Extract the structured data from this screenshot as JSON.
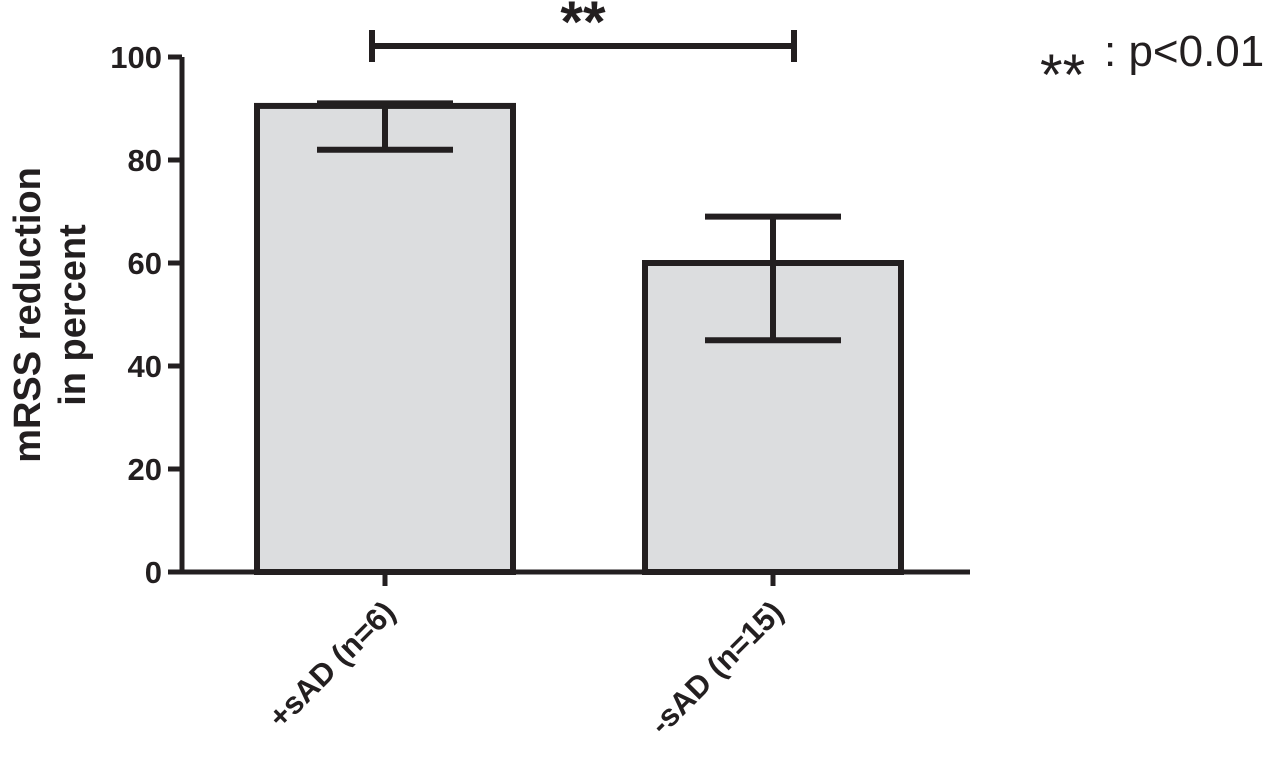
{
  "chart_data": {
    "type": "bar",
    "categories": [
      "+sAD (n=6)",
      "-sAD (n=15)"
    ],
    "values": [
      90.5,
      60
    ],
    "error_bars": [
      {
        "low": 82,
        "high": 91
      },
      {
        "low": 45,
        "high": 69
      }
    ],
    "title": "",
    "xlabel": "",
    "ylabel": [
      "mRSS reduction",
      "in percent"
    ],
    "ylim": [
      0,
      100
    ],
    "yticks": [
      0,
      20,
      40,
      60,
      80,
      100
    ],
    "grid": false,
    "legend": "none",
    "bar_color": "#dcdddf",
    "edge_color": "#231f20",
    "significance": {
      "stars": "**",
      "between": [
        0,
        1
      ],
      "legend_stars": "**",
      "legend_text": ": p<0.01",
      "legend_position": "top-right"
    }
  }
}
